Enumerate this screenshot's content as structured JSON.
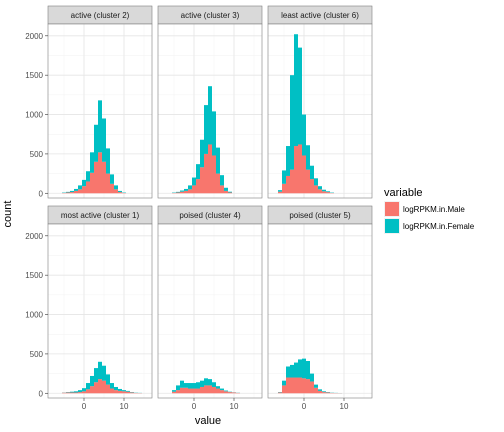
{
  "chart_data": {
    "type": "bar",
    "subtype": "faceted-stacked-histogram",
    "xlabel": "value",
    "ylabel": "count",
    "xlim": [
      -9,
      17
    ],
    "ylim": [
      -60,
      2150
    ],
    "x_ticks": [
      0,
      10
    ],
    "y_ticks": [
      0,
      500,
      1000,
      1500,
      2000
    ],
    "grid": true,
    "bin_width": 1,
    "legend": {
      "title": "variable",
      "position": "right",
      "entries": [
        {
          "name": "logRPKM.in.Male",
          "color": "#F8766D"
        },
        {
          "name": "logRPKM.in.Female",
          "color": "#00BFC4"
        }
      ]
    },
    "panels": [
      {
        "title": "active (cluster 2)",
        "bins": [
          -5,
          -4,
          -3,
          -2,
          -1,
          0,
          1,
          2,
          3,
          4,
          5,
          6,
          7,
          8,
          9,
          10
        ],
        "series": [
          {
            "name": "logRPKM.in.Male",
            "values": [
              5,
              10,
              15,
              30,
              50,
              90,
              150,
              260,
              400,
              520,
              400,
              250,
              120,
              50,
              15,
              5
            ]
          },
          {
            "name": "logRPKM.in.Female",
            "values": [
              5,
              8,
              15,
              25,
              50,
              80,
              130,
              260,
              470,
              660,
              550,
              320,
              120,
              50,
              15,
              5
            ]
          }
        ]
      },
      {
        "title": "active (cluster 3)",
        "bins": [
          -5,
          -4,
          -3,
          -2,
          -1,
          0,
          1,
          2,
          3,
          4,
          5,
          6,
          7,
          8,
          9
        ],
        "series": [
          {
            "name": "logRPKM.in.Male",
            "values": [
              5,
              10,
              20,
              30,
              50,
              100,
              180,
              330,
              500,
              620,
              480,
              250,
              100,
              30,
              10
            ]
          },
          {
            "name": "logRPKM.in.Female",
            "values": [
              5,
              8,
              15,
              25,
              50,
              100,
              190,
              350,
              620,
              740,
              560,
              330,
              130,
              40,
              10
            ]
          }
        ]
      },
      {
        "title": "least active (cluster 6)",
        "bins": [
          -6,
          -5,
          -4,
          -3,
          -2,
          -1,
          0,
          1,
          2,
          3,
          4,
          5,
          6,
          7
        ],
        "series": [
          {
            "name": "logRPKM.in.Male",
            "values": [
              20,
              120,
              220,
              300,
              600,
              620,
              480,
              300,
              180,
              100,
              50,
              25,
              15,
              5
            ]
          },
          {
            "name": "logRPKM.in.Female",
            "values": [
              20,
              170,
              380,
              1200,
              1420,
              1230,
              520,
              310,
              170,
              90,
              40,
              20,
              10,
              5
            ]
          }
        ]
      },
      {
        "title": "most active (cluster 1)",
        "bins": [
          -5,
          -4,
          -3,
          -2,
          -1,
          0,
          1,
          2,
          3,
          4,
          5,
          6,
          7,
          8,
          9,
          10,
          11,
          12,
          13,
          14
        ],
        "series": [
          {
            "name": "logRPKM.in.Male",
            "values": [
              8,
              10,
              10,
              10,
              15,
              25,
              50,
              90,
              140,
              180,
              160,
              110,
              60,
              40,
              30,
              25,
              20,
              10,
              5,
              3
            ]
          },
          {
            "name": "logRPKM.in.Female",
            "values": [
              2,
              5,
              10,
              15,
              25,
              40,
              80,
              130,
              180,
              220,
              190,
              130,
              70,
              40,
              25,
              15,
              10,
              5,
              3,
              2
            ]
          }
        ]
      },
      {
        "title": "poised (cluster 4)",
        "bins": [
          -5,
          -4,
          -3,
          -2,
          -1,
          0,
          1,
          2,
          3,
          4,
          5,
          6,
          7,
          8,
          9,
          10,
          11
        ],
        "series": [
          {
            "name": "logRPKM.in.Male",
            "values": [
              20,
              40,
              70,
              70,
              60,
              60,
              60,
              80,
              100,
              100,
              80,
              60,
              40,
              25,
              15,
              10,
              5
            ]
          },
          {
            "name": "logRPKM.in.Female",
            "values": [
              20,
              60,
              90,
              60,
              70,
              70,
              80,
              80,
              90,
              80,
              60,
              30,
              20,
              10,
              5,
              2,
              2
            ]
          }
        ]
      },
      {
        "title": "poised (cluster 5)",
        "bins": [
          -6,
          -5,
          -4,
          -3,
          -2,
          -1,
          0,
          1,
          2,
          3,
          4,
          5,
          6,
          7,
          8,
          9
        ],
        "series": [
          {
            "name": "logRPKM.in.Male",
            "values": [
              10,
              100,
              200,
              200,
              200,
              200,
              190,
              180,
              150,
              70,
              30,
              15,
              10,
              5,
              3,
              2
            ]
          },
          {
            "name": "logRPKM.in.Female",
            "values": [
              5,
              60,
              140,
              160,
              190,
              230,
              250,
              230,
              100,
              40,
              20,
              10,
              5,
              3,
              2,
              1
            ]
          }
        ]
      }
    ]
  }
}
